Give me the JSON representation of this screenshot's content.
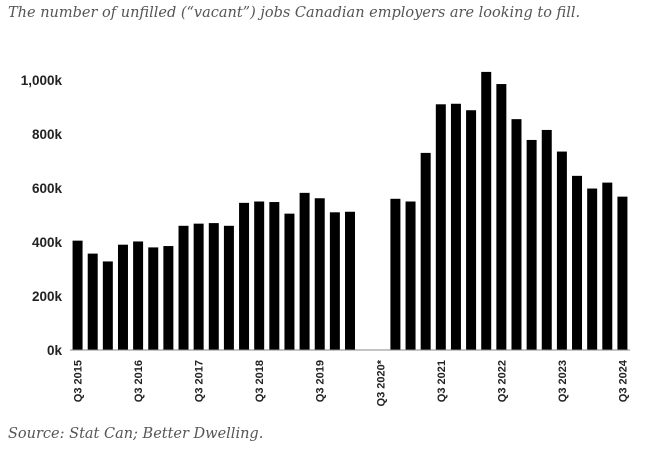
{
  "subtitle": "The number of unfilled (“vacant”) jobs Canadian employers are looking to fill.",
  "source": "Source: Stat Can; Better Dwelling.",
  "chart_data": {
    "type": "bar",
    "title": "",
    "xlabel": "",
    "ylabel": "",
    "ylim": [
      0,
      1000
    ],
    "y_unit_suffix": "k",
    "yticks": [
      0,
      200,
      400,
      600,
      800,
      1000
    ],
    "ytick_labels": [
      "0k",
      "200k",
      "400k",
      "600k",
      "800k",
      "1,000k"
    ],
    "grid": false,
    "legend": "none",
    "bar_color": "#000000",
    "categories": [
      "Q3 2015",
      "Q4 2015",
      "Q1 2016",
      "Q2 2016",
      "Q3 2016",
      "Q4 2016",
      "Q1 2017",
      "Q2 2017",
      "Q3 2017",
      "Q4 2017",
      "Q1 2018",
      "Q2 2018",
      "Q3 2018",
      "Q4 2018",
      "Q1 2019",
      "Q2 2019",
      "Q3 2019",
      "Q4 2019",
      "Q1 2020",
      "Q2 2020",
      "Q3 2020*",
      "Q4 2020",
      "Q1 2021",
      "Q2 2021",
      "Q3 2021",
      "Q4 2021",
      "Q1 2022",
      "Q2 2022",
      "Q3 2022",
      "Q4 2022",
      "Q1 2023",
      "Q2 2023",
      "Q3 2023",
      "Q4 2023",
      "Q1 2024",
      "Q2 2024",
      "Q3 2024"
    ],
    "values": [
      405,
      357,
      328,
      390,
      402,
      380,
      385,
      460,
      468,
      470,
      460,
      545,
      550,
      548,
      505,
      582,
      562,
      510,
      512,
      null,
      null,
      560,
      550,
      730,
      910,
      912,
      888,
      1030,
      985,
      855,
      778,
      815,
      735,
      645,
      598,
      620,
      568
    ],
    "xtick_labels": [
      "Q3 2015",
      "Q3 2016",
      "Q3 2017",
      "Q3 2018",
      "Q3 2019",
      "Q3 2020*",
      "Q3 2021",
      "Q3 2022",
      "Q3 2023",
      "Q3 2024"
    ]
  }
}
